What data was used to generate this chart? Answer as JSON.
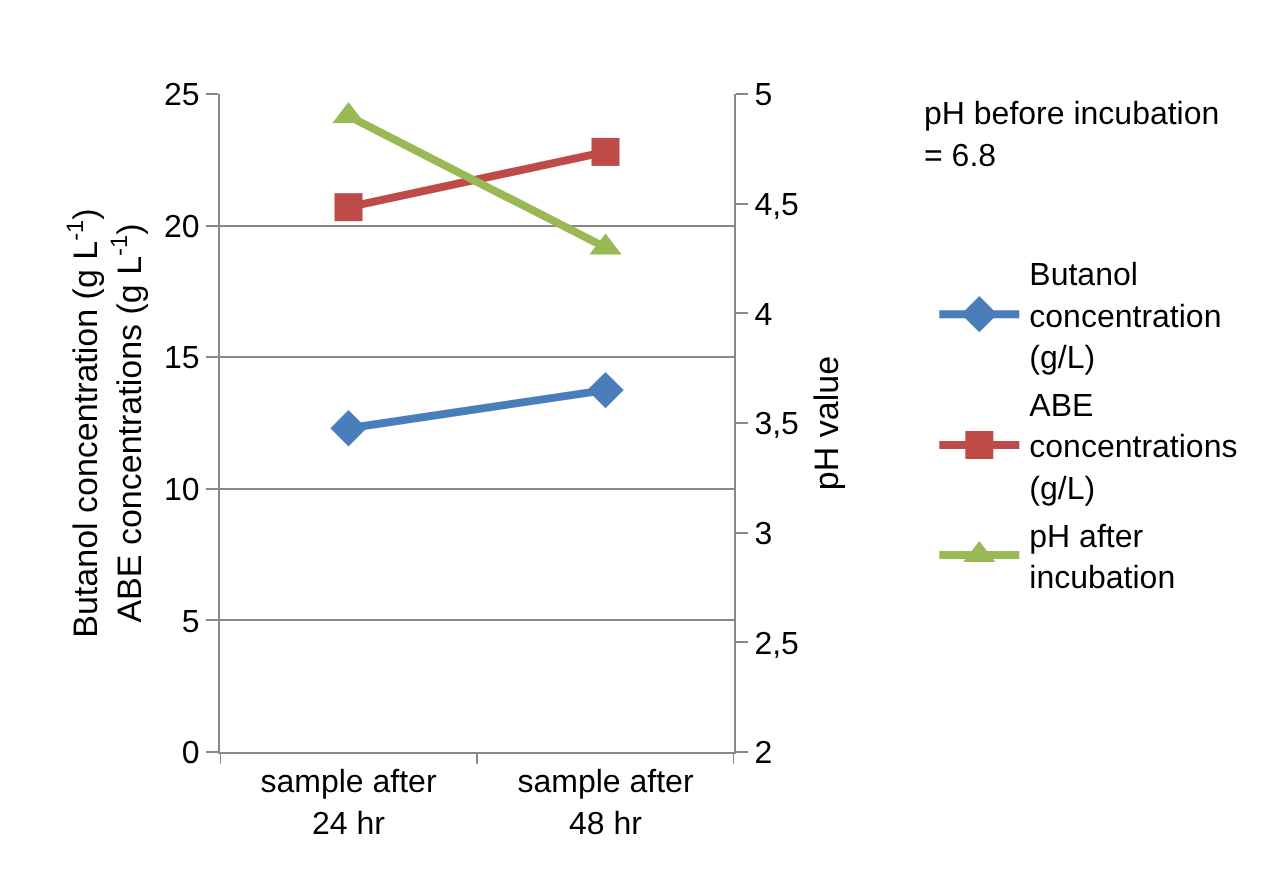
{
  "chart_data": {
    "type": "line",
    "categories": [
      "sample after 24 hr",
      "sample after 48 hr"
    ],
    "series": [
      {
        "name": "Butanol concentration (g/L)",
        "color": "#4a7ebb",
        "values": [
          12.3,
          13.75
        ],
        "marker": "diamond"
      },
      {
        "name": "ABE concentrations (g/L)",
        "color": "#be4b48",
        "values": [
          20.7,
          22.8
        ],
        "marker": "square"
      },
      {
        "name": "pH after incubation",
        "color": "#98b954",
        "values": [
          4.9,
          4.3
        ],
        "marker": "triangle",
        "axis": "y2"
      }
    ],
    "ylabel": "Butanol concentration (g L$^{-1}$)\nABE concentrations (g L$^{-1}$)",
    "y2label": "pH value",
    "ylim": [
      0,
      25
    ],
    "yticks": [
      0,
      5,
      10,
      15,
      20,
      25
    ],
    "y2lim": [
      2,
      5
    ],
    "y2ticks": [
      2,
      {
        "value": 2.5,
        "label": "2,5"
      },
      3,
      {
        "value": 3.5,
        "label": "3,5"
      },
      4,
      {
        "value": 4.5,
        "label": "4,5"
      },
      5
    ],
    "annotations": [
      "pH before incubation = 6.8"
    ],
    "grid": "y",
    "legend": "right",
    "line_style": "solid"
  }
}
